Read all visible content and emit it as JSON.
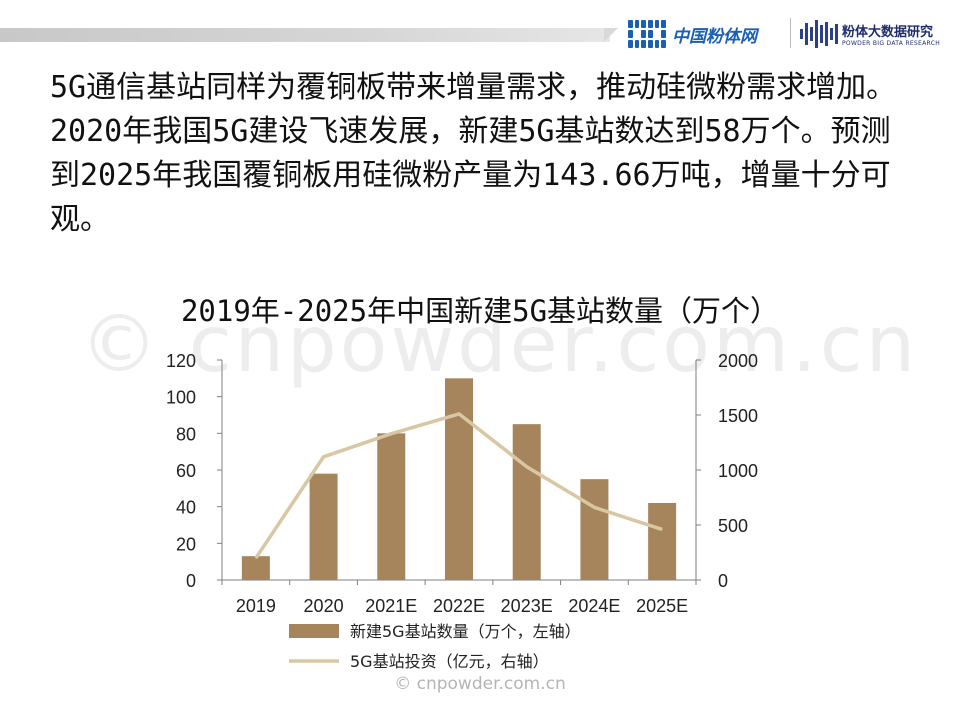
{
  "header": {
    "logo1_text": "中国粉体网",
    "logo2_cn": "粉体大数据研究",
    "logo2_en": "POWDER BIG DATA RESEARCH"
  },
  "paragraph": "5G通信基站同样为覆铜板带来增量需求，推动硅微粉需求增加。2020年我国5G建设飞速发展，新建5G基站数达到58万个。预测到2025年我国覆铜板用硅微粉产量为143.66万吨，增量十分可观。",
  "watermark": "© cnpowder.com.cn",
  "footer": "© cnpowder.com.cn",
  "colors": {
    "bar": "#a6845c",
    "line": "#d8c7a2",
    "axis": "#7f7f7f"
  },
  "chart_data": {
    "type": "bar",
    "title": "2019年-2025年中国新建5G基站数量（万个）",
    "categories": [
      "2019",
      "2020",
      "2021E",
      "2022E",
      "2023E",
      "2024E",
      "2025E"
    ],
    "series": [
      {
        "name": "新建5G基站数量（万个，左轴）",
        "type": "bar",
        "axis": "left",
        "values": [
          13,
          58,
          80,
          110,
          85,
          55,
          42
        ]
      },
      {
        "name": "5G基站投资（亿元，右轴）",
        "type": "line",
        "axis": "right",
        "values": [
          200,
          1120,
          1330,
          1510,
          1030,
          660,
          460
        ]
      }
    ],
    "y_left": {
      "ticks": [
        "0",
        "20",
        "40",
        "60",
        "80",
        "100",
        "120"
      ],
      "lim": [
        0,
        120
      ]
    },
    "y_right": {
      "ticks": [
        "0",
        "500",
        "1000",
        "1500",
        "2000"
      ],
      "lim": [
        0,
        2000
      ]
    },
    "legend_position": "bottom",
    "grid": false
  }
}
